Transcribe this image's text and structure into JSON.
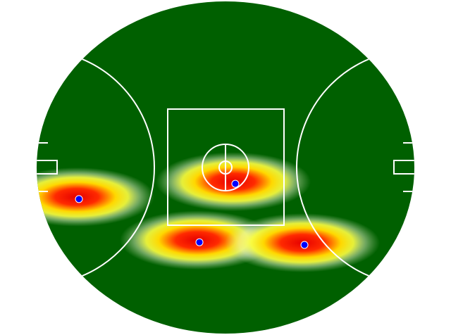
{
  "chart_data": {
    "type": "scatter",
    "x": [
      11.2,
      52.6,
      43.1,
      70.9
    ],
    "values": [
      40.5,
      45.1,
      27.5,
      26.7
    ],
    "xlim": [
      0,
      100
    ],
    "ylim": [
      0,
      100
    ],
    "color": "#0000ff"
  }
}
